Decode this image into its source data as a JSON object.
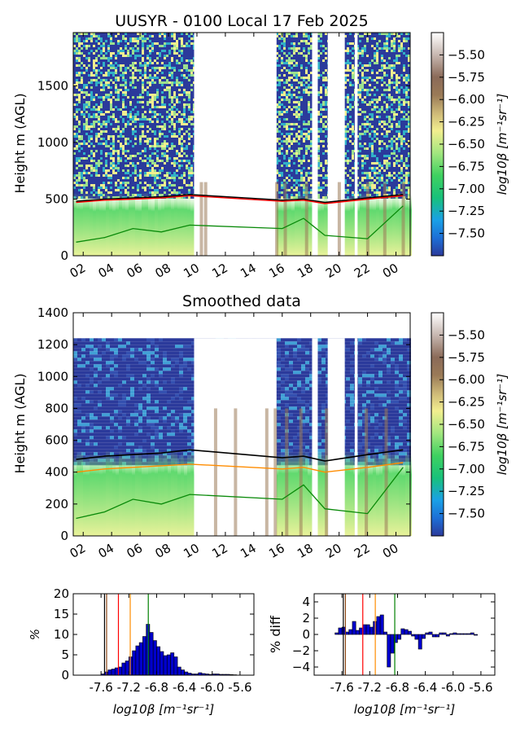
{
  "chart_data": [
    {
      "type": "heatmap",
      "title": "UUSYR - 0100 Local 17 Feb 2025",
      "ylabel": "Height m (AGL)",
      "xticks": [
        "02",
        "04",
        "06",
        "08",
        "10",
        "12",
        "14",
        "16",
        "18",
        "20",
        "22",
        "00"
      ],
      "yticks": [
        0,
        500,
        1000,
        1500
      ],
      "ylim": [
        0,
        1970
      ],
      "xlim": [
        1.3,
        25
      ],
      "colorbar": {
        "label": "log10β [m⁻¹sr⁻¹]",
        "ticks": [
          "-5.50",
          "-5.75",
          "-6.00",
          "-6.25",
          "-6.50",
          "-6.75",
          "-7.00",
          "-7.25",
          "-7.50"
        ],
        "range": [
          -7.75,
          -5.25
        ]
      },
      "clear_intervals_hours": [
        [
          9.8,
          10.6
        ],
        [
          10.6,
          15.6
        ],
        [
          18.1,
          19.6
        ],
        [
          19.6,
          20.6
        ]
      ],
      "boundary_layer_height": {
        "black": [
          480,
          500,
          510,
          520,
          540,
          490,
          500,
          470,
          510,
          540
        ],
        "red": [
          470,
          490,
          500,
          510,
          530,
          480,
          490,
          460,
          500,
          530
        ]
      },
      "green_line_heights": [
        120,
        160,
        240,
        210,
        270,
        240,
        330,
        180,
        150,
        440
      ]
    },
    {
      "type": "heatmap",
      "title": "Smoothed data",
      "ylabel": "Height m (AGL)",
      "xticks": [
        "02",
        "04",
        "06",
        "08",
        "10",
        "12",
        "14",
        "16",
        "18",
        "20",
        "22",
        "00"
      ],
      "yticks": [
        0,
        200,
        400,
        600,
        800,
        1000,
        1200,
        1400
      ],
      "ylim": [
        0,
        1400
      ],
      "xlim": [
        1.3,
        25
      ],
      "data_top": 1240,
      "colorbar": {
        "label": "log10β [m⁻¹sr⁻¹]",
        "ticks": [
          "-5.50",
          "-5.75",
          "-6.00",
          "-6.25",
          "-6.50",
          "-6.75",
          "-7.00",
          "-7.25",
          "-7.50"
        ],
        "range": [
          -7.75,
          -5.25
        ]
      },
      "boundary_layer_height": {
        "black": [
          480,
          500,
          510,
          520,
          540,
          490,
          500,
          470,
          510,
          540
        ],
        "orange": [
          400,
          420,
          430,
          440,
          450,
          420,
          430,
          400,
          430,
          460
        ]
      },
      "green_line_heights": [
        110,
        150,
        230,
        200,
        260,
        230,
        320,
        170,
        140,
        430
      ]
    },
    {
      "type": "bar",
      "ylabel": "%",
      "xlabel": "log10β [m⁻¹sr⁻¹]",
      "xticks": [
        "-7.6",
        "-7.2",
        "-6.8",
        "-6.4",
        "-6.0",
        "-5.6"
      ],
      "yticks": [
        0,
        5,
        10,
        15,
        20
      ],
      "xlim": [
        -8.0,
        -5.4
      ],
      "ylim": [
        0,
        20
      ],
      "bin_width": 0.05,
      "x": [
        -7.6,
        -7.55,
        -7.5,
        -7.45,
        -7.4,
        -7.35,
        -7.3,
        -7.25,
        -7.2,
        -7.15,
        -7.1,
        -7.05,
        -7.0,
        -6.95,
        -6.9,
        -6.85,
        -6.8,
        -6.75,
        -6.7,
        -6.65,
        -6.6,
        -6.55,
        -6.5,
        -6.45,
        -6.4,
        -6.35,
        -6.3,
        -6.25,
        -6.2,
        -6.15,
        -6.1,
        -6.05,
        -6.0,
        -5.95,
        -5.9,
        -5.85,
        -5.8,
        -5.75,
        -5.7
      ],
      "values": [
        0.3,
        0.8,
        1.3,
        1.5,
        1.8,
        2.0,
        3.0,
        3.5,
        4.5,
        6.0,
        7.2,
        8.0,
        9.5,
        12.5,
        10.5,
        8.5,
        7.0,
        5.8,
        4.8,
        5.0,
        5.5,
        4.5,
        2.0,
        1.3,
        0.8,
        0.5,
        0.3,
        0.3,
        0.6,
        0.4,
        0.3,
        0.2,
        0.3,
        0.3,
        0.2,
        0.2,
        0.2,
        0.15,
        0.1
      ],
      "vlines": [
        {
          "x": -7.55,
          "color": "#000000"
        },
        {
          "x": -7.52,
          "color": "#8b4513"
        },
        {
          "x": -7.35,
          "color": "#ff0000"
        },
        {
          "x": -7.18,
          "color": "#ff8c00"
        },
        {
          "x": -6.92,
          "color": "#008000"
        }
      ]
    },
    {
      "type": "bar",
      "ylabel": "% diff",
      "xlabel": "log10β [m⁻¹sr⁻¹]",
      "xticks": [
        "-7.6",
        "-7.2",
        "-6.8",
        "-6.4",
        "-6.0",
        "-5.6"
      ],
      "yticks": [
        -4,
        -2,
        0,
        2,
        4
      ],
      "xlim": [
        -8.0,
        -5.4
      ],
      "ylim": [
        -5,
        5
      ],
      "bin_width": 0.05,
      "x": [
        -7.7,
        -7.65,
        -7.6,
        -7.55,
        -7.5,
        -7.45,
        -7.4,
        -7.35,
        -7.3,
        -7.25,
        -7.2,
        -7.15,
        -7.1,
        -7.05,
        -7.0,
        -6.95,
        -6.9,
        -6.85,
        -6.8,
        -6.75,
        -6.7,
        -6.65,
        -6.6,
        -6.55,
        -6.5,
        -6.45,
        -6.4,
        -6.35,
        -6.3,
        -6.25,
        -6.2,
        -6.15,
        -6.1,
        -6.05,
        -6.0,
        -5.95,
        -5.9,
        -5.85,
        -5.8,
        -5.75,
        -5.7
      ],
      "values": [
        0.2,
        0.8,
        0.9,
        0.3,
        0.6,
        1.6,
        0.5,
        0.8,
        1.2,
        1.2,
        0.9,
        1.6,
        2.2,
        2.4,
        0.3,
        -4.0,
        -2.3,
        -1.0,
        -0.6,
        0.7,
        0.6,
        0.4,
        -0.2,
        -0.6,
        -1.8,
        -0.5,
        0.2,
        0.3,
        -0.3,
        -0.3,
        0.2,
        0.2,
        -0.2,
        0.1,
        0.2,
        0.1,
        0.1,
        0.1,
        0.1,
        0.2,
        -0.1
      ],
      "vlines": [
        {
          "x": -7.58,
          "color": "#000000"
        },
        {
          "x": -7.55,
          "color": "#8b4513"
        },
        {
          "x": -7.3,
          "color": "#ff0000"
        },
        {
          "x": -7.12,
          "color": "#ff8c00"
        },
        {
          "x": -6.84,
          "color": "#008000"
        }
      ]
    }
  ]
}
